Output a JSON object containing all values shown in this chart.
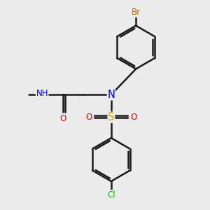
{
  "background_color": "#ebebeb",
  "bond_color": "#1a1a1a",
  "bond_width": 1.8,
  "atom_colors": {
    "Br": "#cc6600",
    "N": "#0000ff",
    "H": "#008080",
    "O": "#ff0000",
    "S": "#ccaa00",
    "Cl": "#00bb00",
    "C": "#1a1a1a"
  },
  "font_size": 8.5,
  "fig_size": [
    3.0,
    3.0
  ],
  "dpi": 100
}
